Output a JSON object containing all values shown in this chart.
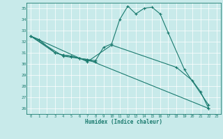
{
  "xlabel": "Humidex (Indice chaleur)",
  "bg_color": "#c8eaea",
  "grid_color": "#ffffff",
  "line_color": "#1a7a6e",
  "xlim": [
    -0.5,
    23.5
  ],
  "ylim": [
    25.5,
    35.5
  ],
  "xticks": [
    0,
    1,
    2,
    3,
    4,
    5,
    6,
    7,
    8,
    9,
    10,
    11,
    12,
    13,
    14,
    15,
    16,
    17,
    18,
    19,
    20,
    21,
    22,
    23
  ],
  "yticks": [
    26,
    27,
    28,
    29,
    30,
    31,
    32,
    33,
    34,
    35
  ],
  "s1_x": [
    0,
    1,
    3,
    4,
    5,
    6,
    7,
    22
  ],
  "s1_y": [
    32.5,
    32.2,
    31.0,
    30.8,
    30.7,
    30.5,
    30.4,
    26.0
  ],
  "s2_x": [
    0,
    3,
    4,
    5,
    6,
    7,
    8,
    9,
    10,
    11,
    12,
    13,
    14,
    15,
    16,
    17,
    19,
    22
  ],
  "s2_y": [
    32.5,
    31.0,
    30.8,
    30.7,
    30.5,
    30.4,
    30.3,
    31.5,
    31.8,
    34.0,
    35.2,
    34.5,
    35.0,
    35.1,
    34.5,
    32.8,
    29.5,
    26.3
  ],
  "s3_x": [
    0,
    4,
    5,
    6,
    7,
    8
  ],
  "s3_y": [
    32.5,
    30.7,
    30.6,
    30.5,
    30.3,
    30.2
  ],
  "s4_x": [
    0,
    7,
    10,
    18,
    20,
    21,
    22
  ],
  "s4_y": [
    32.5,
    30.2,
    31.7,
    29.7,
    28.5,
    27.5,
    26.0
  ]
}
